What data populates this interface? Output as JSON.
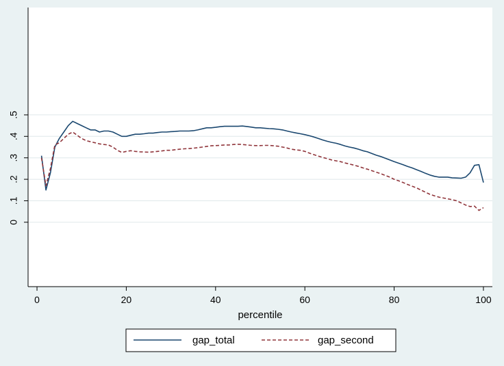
{
  "chart_data": {
    "type": "line",
    "xlabel": "percentile",
    "ylabel": "",
    "xlim": [
      -2,
      102
    ],
    "ylim": [
      -0.3,
      1.0
    ],
    "xticks": [
      0,
      20,
      40,
      60,
      80,
      100
    ],
    "xtick_labels": [
      "0",
      "20",
      "40",
      "60",
      "80",
      "100"
    ],
    "yticks": [
      0,
      0.1,
      0.2,
      0.3,
      0.4,
      0.5
    ],
    "ytick_labels": [
      "0",
      ".1",
      ".2",
      ".3",
      ".4",
      ".5"
    ],
    "grid": true,
    "legend_position": "bottom",
    "colors": {
      "plot_bg": "#ffffff",
      "page_bg": "#eaf2f3",
      "grid": "#dfe8ea"
    },
    "x": [
      1,
      2,
      3,
      4,
      5,
      6,
      7,
      8,
      9,
      10,
      11,
      12,
      13,
      14,
      15,
      16,
      17,
      18,
      19,
      20,
      21,
      22,
      23,
      24,
      25,
      26,
      27,
      28,
      29,
      30,
      31,
      32,
      33,
      34,
      35,
      36,
      37,
      38,
      39,
      40,
      41,
      42,
      43,
      44,
      45,
      46,
      47,
      48,
      49,
      50,
      51,
      52,
      53,
      54,
      55,
      56,
      57,
      58,
      59,
      60,
      61,
      62,
      63,
      64,
      65,
      66,
      67,
      68,
      69,
      70,
      71,
      72,
      73,
      74,
      75,
      76,
      77,
      78,
      79,
      80,
      81,
      82,
      83,
      84,
      85,
      86,
      87,
      88,
      89,
      90,
      91,
      92,
      93,
      94,
      95,
      96,
      97,
      98,
      99,
      100
    ],
    "series": [
      {
        "name": "gap_total",
        "color": "#1a476f",
        "dash": "",
        "values": [
          0.31,
          0.15,
          0.23,
          0.35,
          0.39,
          0.42,
          0.45,
          0.47,
          0.46,
          0.45,
          0.44,
          0.43,
          0.43,
          0.42,
          0.425,
          0.425,
          0.42,
          0.41,
          0.4,
          0.4,
          0.405,
          0.41,
          0.41,
          0.412,
          0.415,
          0.415,
          0.418,
          0.42,
          0.42,
          0.422,
          0.423,
          0.425,
          0.425,
          0.425,
          0.426,
          0.43,
          0.435,
          0.44,
          0.44,
          0.442,
          0.445,
          0.447,
          0.447,
          0.447,
          0.447,
          0.448,
          0.446,
          0.443,
          0.44,
          0.44,
          0.438,
          0.436,
          0.435,
          0.433,
          0.43,
          0.425,
          0.42,
          0.416,
          0.412,
          0.408,
          0.403,
          0.397,
          0.39,
          0.383,
          0.377,
          0.372,
          0.368,
          0.362,
          0.355,
          0.35,
          0.346,
          0.34,
          0.333,
          0.328,
          0.32,
          0.312,
          0.306,
          0.298,
          0.29,
          0.282,
          0.275,
          0.268,
          0.26,
          0.253,
          0.245,
          0.237,
          0.228,
          0.22,
          0.214,
          0.21,
          0.21,
          0.21,
          0.207,
          0.206,
          0.205,
          0.21,
          0.23,
          0.265,
          0.268,
          0.185
        ]
      },
      {
        "name": "gap_second",
        "color": "#90353b",
        "dash": "5,3",
        "values": [
          0.3,
          0.17,
          0.25,
          0.36,
          0.37,
          0.39,
          0.41,
          0.42,
          0.405,
          0.39,
          0.38,
          0.375,
          0.37,
          0.365,
          0.362,
          0.36,
          0.35,
          0.335,
          0.325,
          0.33,
          0.333,
          0.33,
          0.328,
          0.327,
          0.326,
          0.328,
          0.33,
          0.332,
          0.335,
          0.335,
          0.338,
          0.34,
          0.342,
          0.343,
          0.345,
          0.347,
          0.35,
          0.353,
          0.356,
          0.357,
          0.358,
          0.36,
          0.36,
          0.362,
          0.363,
          0.362,
          0.36,
          0.358,
          0.357,
          0.357,
          0.358,
          0.358,
          0.356,
          0.354,
          0.35,
          0.346,
          0.34,
          0.337,
          0.335,
          0.33,
          0.322,
          0.315,
          0.308,
          0.302,
          0.296,
          0.29,
          0.286,
          0.282,
          0.276,
          0.271,
          0.266,
          0.26,
          0.253,
          0.247,
          0.24,
          0.233,
          0.226,
          0.218,
          0.21,
          0.2,
          0.193,
          0.185,
          0.176,
          0.168,
          0.16,
          0.15,
          0.14,
          0.13,
          0.123,
          0.117,
          0.113,
          0.109,
          0.105,
          0.1,
          0.09,
          0.08,
          0.073,
          0.075,
          0.055,
          0.068
        ]
      }
    ]
  }
}
